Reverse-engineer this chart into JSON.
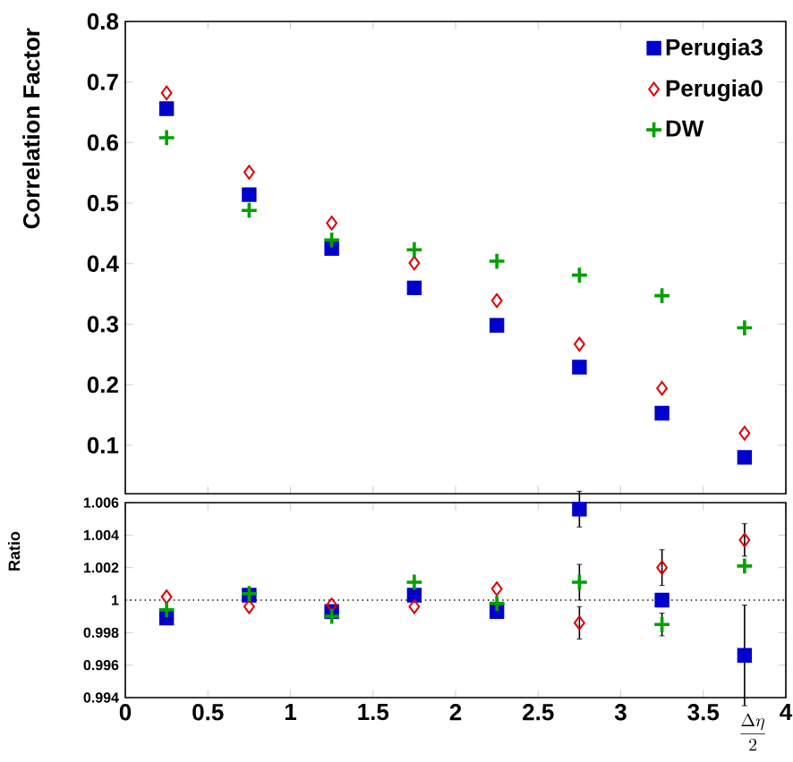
{
  "chart_data": [
    {
      "type": "scatter",
      "ylabel": "Correlation Factor",
      "x": [
        0.25,
        0.75,
        1.25,
        1.75,
        2.25,
        2.75,
        3.25,
        3.75
      ],
      "xlim": [
        0,
        4
      ],
      "xticks": [
        0,
        0.5,
        1,
        1.5,
        2,
        2.5,
        3,
        3.5,
        4
      ],
      "ylim": [
        0.02,
        0.8
      ],
      "yticks": [
        0.1,
        0.2,
        0.3,
        0.4,
        0.5,
        0.6,
        0.7,
        0.8
      ],
      "tick_labels": "y",
      "legend": "top right",
      "series": [
        {
          "name": "Perugia3",
          "color": "#0000cc",
          "marker": "square",
          "values": [
            0.656,
            0.514,
            0.425,
            0.36,
            0.298,
            0.229,
            0.153,
            0.08
          ]
        },
        {
          "name": "Perugia0",
          "color": "#dd0000",
          "marker": "diamond",
          "values": [
            0.682,
            0.551,
            0.467,
            0.401,
            0.339,
            0.267,
            0.194,
            0.12
          ]
        },
        {
          "name": "DW",
          "color": "#00a000",
          "marker": "cross",
          "values": [
            0.608,
            0.488,
            0.439,
            0.423,
            0.404,
            0.381,
            0.347,
            0.294
          ]
        }
      ]
    },
    {
      "type": "scatter",
      "ylabel": "Ratio",
      "xlabel": "\\frac{\\Delta\\eta}{2}",
      "x": [
        0.25,
        0.75,
        1.25,
        1.75,
        2.25,
        2.75,
        3.25,
        3.75
      ],
      "xlim": [
        0,
        4
      ],
      "xticks": [
        0,
        0.5,
        1,
        1.5,
        2,
        2.5,
        3,
        3.5,
        4
      ],
      "ylim": [
        0.994,
        1.006
      ],
      "yticks": [
        0.994,
        0.996,
        0.998,
        1,
        1.002,
        1.004,
        1.006
      ],
      "ref_lines": [
        {
          "axis": "y",
          "value": 1,
          "line_style": "dotted",
          "color": "#000000"
        }
      ],
      "series": [
        {
          "color": "#0000cc",
          "marker": "square",
          "values": [
            0.9989,
            1.0003,
            0.9993,
            1.0003,
            0.9993,
            1.0056,
            1.0,
            0.9966
          ],
          "errors": [
            null,
            null,
            null,
            null,
            null,
            0.0011,
            null,
            0.0031
          ]
        },
        {
          "color": "#dd0000",
          "marker": "diamond",
          "values": [
            1.0002,
            0.9996,
            0.9997,
            0.9996,
            1.0007,
            0.9986,
            1.002,
            1.0037
          ],
          "errors": [
            null,
            null,
            null,
            null,
            null,
            0.001,
            0.0011,
            0.001
          ]
        },
        {
          "color": "#00a000",
          "marker": "cross",
          "values": [
            0.9994,
            1.0004,
            0.999,
            1.0011,
            0.9998,
            1.0011,
            0.9985,
            1.0021
          ],
          "errors": [
            null,
            null,
            null,
            null,
            null,
            0.0011,
            0.0007,
            null
          ]
        }
      ]
    }
  ]
}
